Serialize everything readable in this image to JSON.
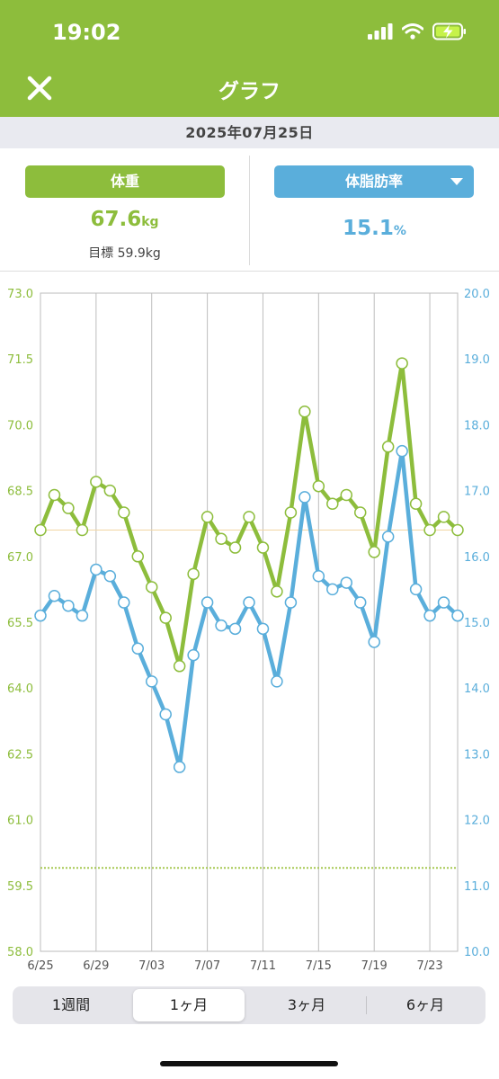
{
  "status_bar": {
    "time": "19:02"
  },
  "nav": {
    "title": "グラフ",
    "close_icon": "close-icon"
  },
  "date": "2025年07月25日",
  "metrics": {
    "weight": {
      "label": "体重",
      "value": "67.6",
      "unit": "kg",
      "goal": "目標 59.9kg"
    },
    "body_fat": {
      "label": "体脂肪率",
      "value": "15.1",
      "unit": "%"
    }
  },
  "colors": {
    "weight": "#8dbd3c",
    "body_fat": "#5aaedb",
    "header": "#8dbd3c",
    "goal_line": "#a7c953"
  },
  "chart_data": {
    "type": "line",
    "x": [
      "6/25",
      "6/26",
      "6/27",
      "6/28",
      "6/29",
      "6/30",
      "7/01",
      "7/02",
      "7/03",
      "7/04",
      "7/05",
      "7/06",
      "7/07",
      "7/08",
      "7/09",
      "7/10",
      "7/11",
      "7/12",
      "7/13",
      "7/14",
      "7/15",
      "7/16",
      "7/17",
      "7/18",
      "7/19",
      "7/20",
      "7/21",
      "7/22",
      "7/23",
      "7/24",
      "7/25"
    ],
    "x_tick_labels": [
      "6/25",
      "6/29",
      "7/03",
      "7/07",
      "7/11",
      "7/15",
      "7/19",
      "7/23"
    ],
    "series": [
      {
        "axis": "left",
        "color": "#8dbd3c",
        "values": [
          67.6,
          68.4,
          68.1,
          67.6,
          68.7,
          68.5,
          68.0,
          67.0,
          66.3,
          65.6,
          64.5,
          66.6,
          67.9,
          67.4,
          67.2,
          67.9,
          67.2,
          66.2,
          68.0,
          70.3,
          68.6,
          68.2,
          68.4,
          68.0,
          67.1,
          69.5,
          71.4,
          68.2,
          67.6,
          67.9,
          67.6
        ]
      },
      {
        "axis": "right",
        "color": "#5aaedb",
        "values": [
          15.1,
          15.4,
          15.25,
          15.1,
          15.8,
          15.7,
          15.3,
          14.6,
          14.1,
          13.6,
          12.8,
          14.5,
          15.3,
          14.95,
          14.9,
          15.3,
          14.9,
          14.1,
          15.3,
          16.9,
          15.7,
          15.5,
          15.6,
          15.3,
          14.7,
          16.3,
          17.6,
          15.5,
          15.1,
          15.3,
          15.1
        ]
      }
    ],
    "y_left": {
      "min": 58.0,
      "max": 73.0,
      "ticks": [
        "73.0",
        "71.5",
        "70.0",
        "68.5",
        "67.0",
        "65.5",
        "64.0",
        "62.5",
        "61.0",
        "59.5",
        "58.0"
      ]
    },
    "y_right": {
      "min": 10.0,
      "max": 20.0,
      "ticks": [
        "20.0",
        "19.0",
        "18.0",
        "17.0",
        "16.0",
        "15.0",
        "14.0",
        "13.0",
        "12.0",
        "11.0",
        "10.0"
      ]
    },
    "reference_lines": {
      "goal_weight": 59.9,
      "current_weight": 67.6
    }
  },
  "periods": [
    {
      "label": "1週間",
      "active": false
    },
    {
      "label": "1ヶ月",
      "active": true
    },
    {
      "label": "3ヶ月",
      "active": false
    },
    {
      "label": "6ヶ月",
      "active": false
    }
  ]
}
